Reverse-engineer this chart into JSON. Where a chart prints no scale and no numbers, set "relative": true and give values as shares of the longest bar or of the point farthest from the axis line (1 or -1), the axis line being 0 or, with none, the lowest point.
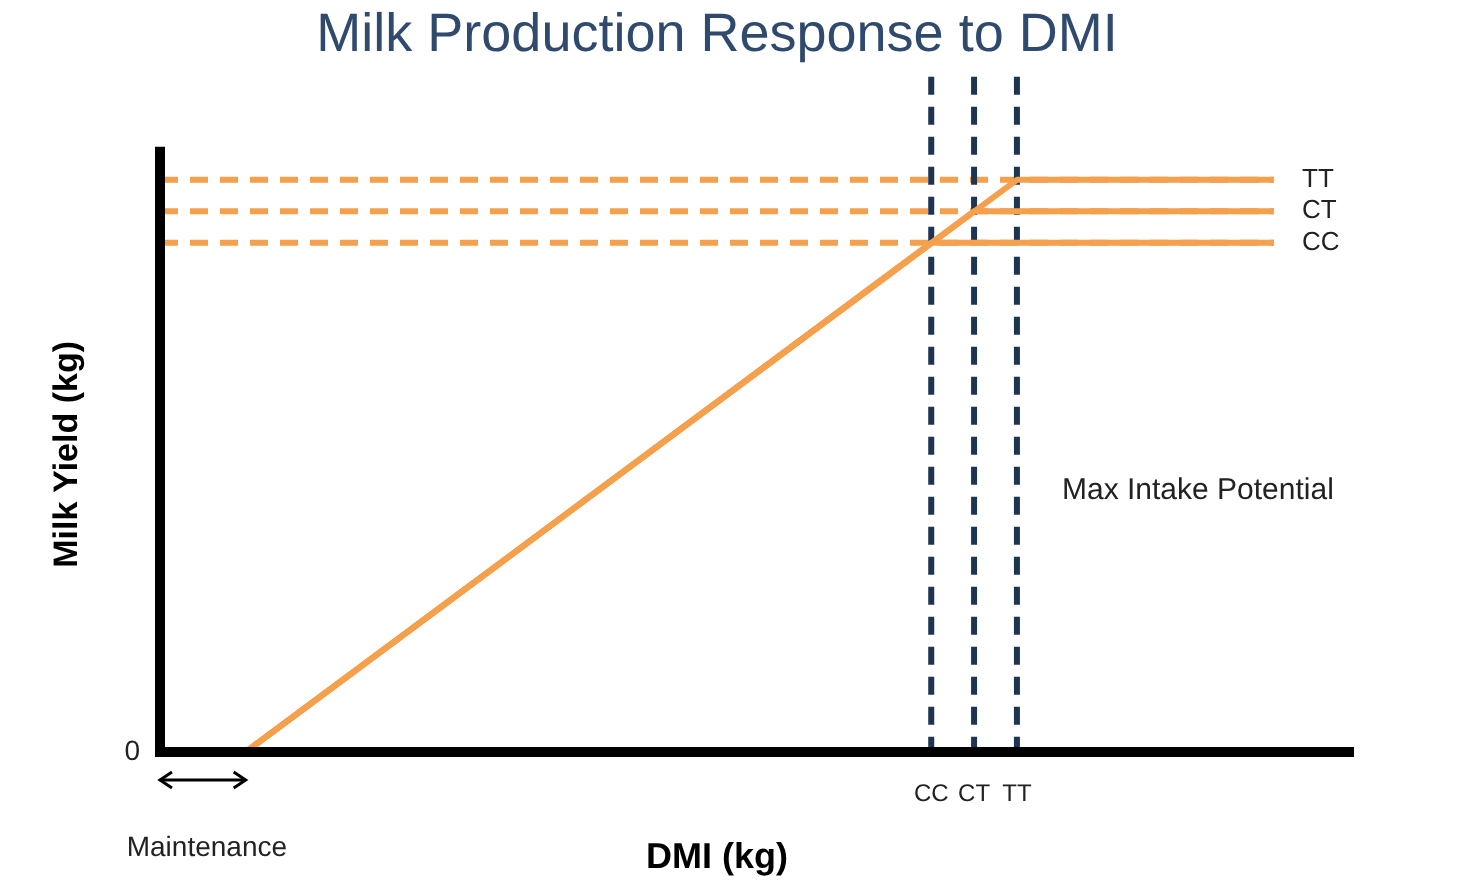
{
  "chart_data": {
    "type": "line",
    "title": "Milk Production Response to DMI",
    "xlabel": "DMI (kg)",
    "ylabel": "Milk Yield (kg)",
    "relative": true,
    "categories": [
      null,
      null,
      null,
      null,
      null,
      null,
      null,
      null,
      null,
      null,
      null,
      null,
      null,
      null,
      null,
      null,
      null,
      null,
      "CC",
      "CT",
      "TT",
      null,
      null,
      null,
      null,
      null,
      null
    ],
    "series": [
      {
        "name": "TT",
        "color": "#f5a04c",
        "values": [
          null,
          null,
          0,
          null,
          null,
          null,
          null,
          null,
          null,
          null,
          null,
          null,
          null,
          null,
          null,
          null,
          null,
          null,
          null,
          null,
          1,
          null,
          null,
          null,
          null,
          null,
          1
        ]
      },
      {
        "name": "CT",
        "color": "#f5a04c",
        "values": [
          null,
          null,
          0,
          null,
          null,
          null,
          null,
          null,
          null,
          null,
          null,
          null,
          null,
          null,
          null,
          null,
          null,
          null,
          null,
          0.945,
          null,
          null,
          null,
          null,
          null,
          null,
          0.945
        ]
      },
      {
        "name": "CC",
        "color": "#f5a04c",
        "values": [
          null,
          null,
          0,
          null,
          null,
          null,
          null,
          null,
          null,
          null,
          null,
          null,
          null,
          null,
          null,
          null,
          null,
          null,
          0.89,
          null,
          null,
          null,
          null,
          null,
          null,
          null,
          0.89
        ]
      }
    ],
    "ref_lines": [
      {
        "axis": "y",
        "value": 1,
        "color": "#f5a04c",
        "line_style": "dashed"
      },
      {
        "axis": "y",
        "value": 0.945,
        "color": "#f5a04c",
        "line_style": "dashed"
      },
      {
        "axis": "y",
        "value": 0.89,
        "color": "#f5a04c",
        "line_style": "dashed"
      },
      {
        "axis": "x",
        "value": "CC",
        "color": "#1e3552",
        "line_style": "dashed"
      },
      {
        "axis": "x",
        "value": "CT",
        "color": "#1e3552",
        "line_style": "dashed"
      },
      {
        "axis": "x",
        "value": "TT",
        "color": "#1e3552",
        "line_style": "dashed"
      }
    ],
    "annotations": [
      "0",
      "Maintenance",
      "Max Intake Potential"
    ],
    "legend": false,
    "grid": false,
    "marker": "none",
    "line_style": "solid"
  }
}
